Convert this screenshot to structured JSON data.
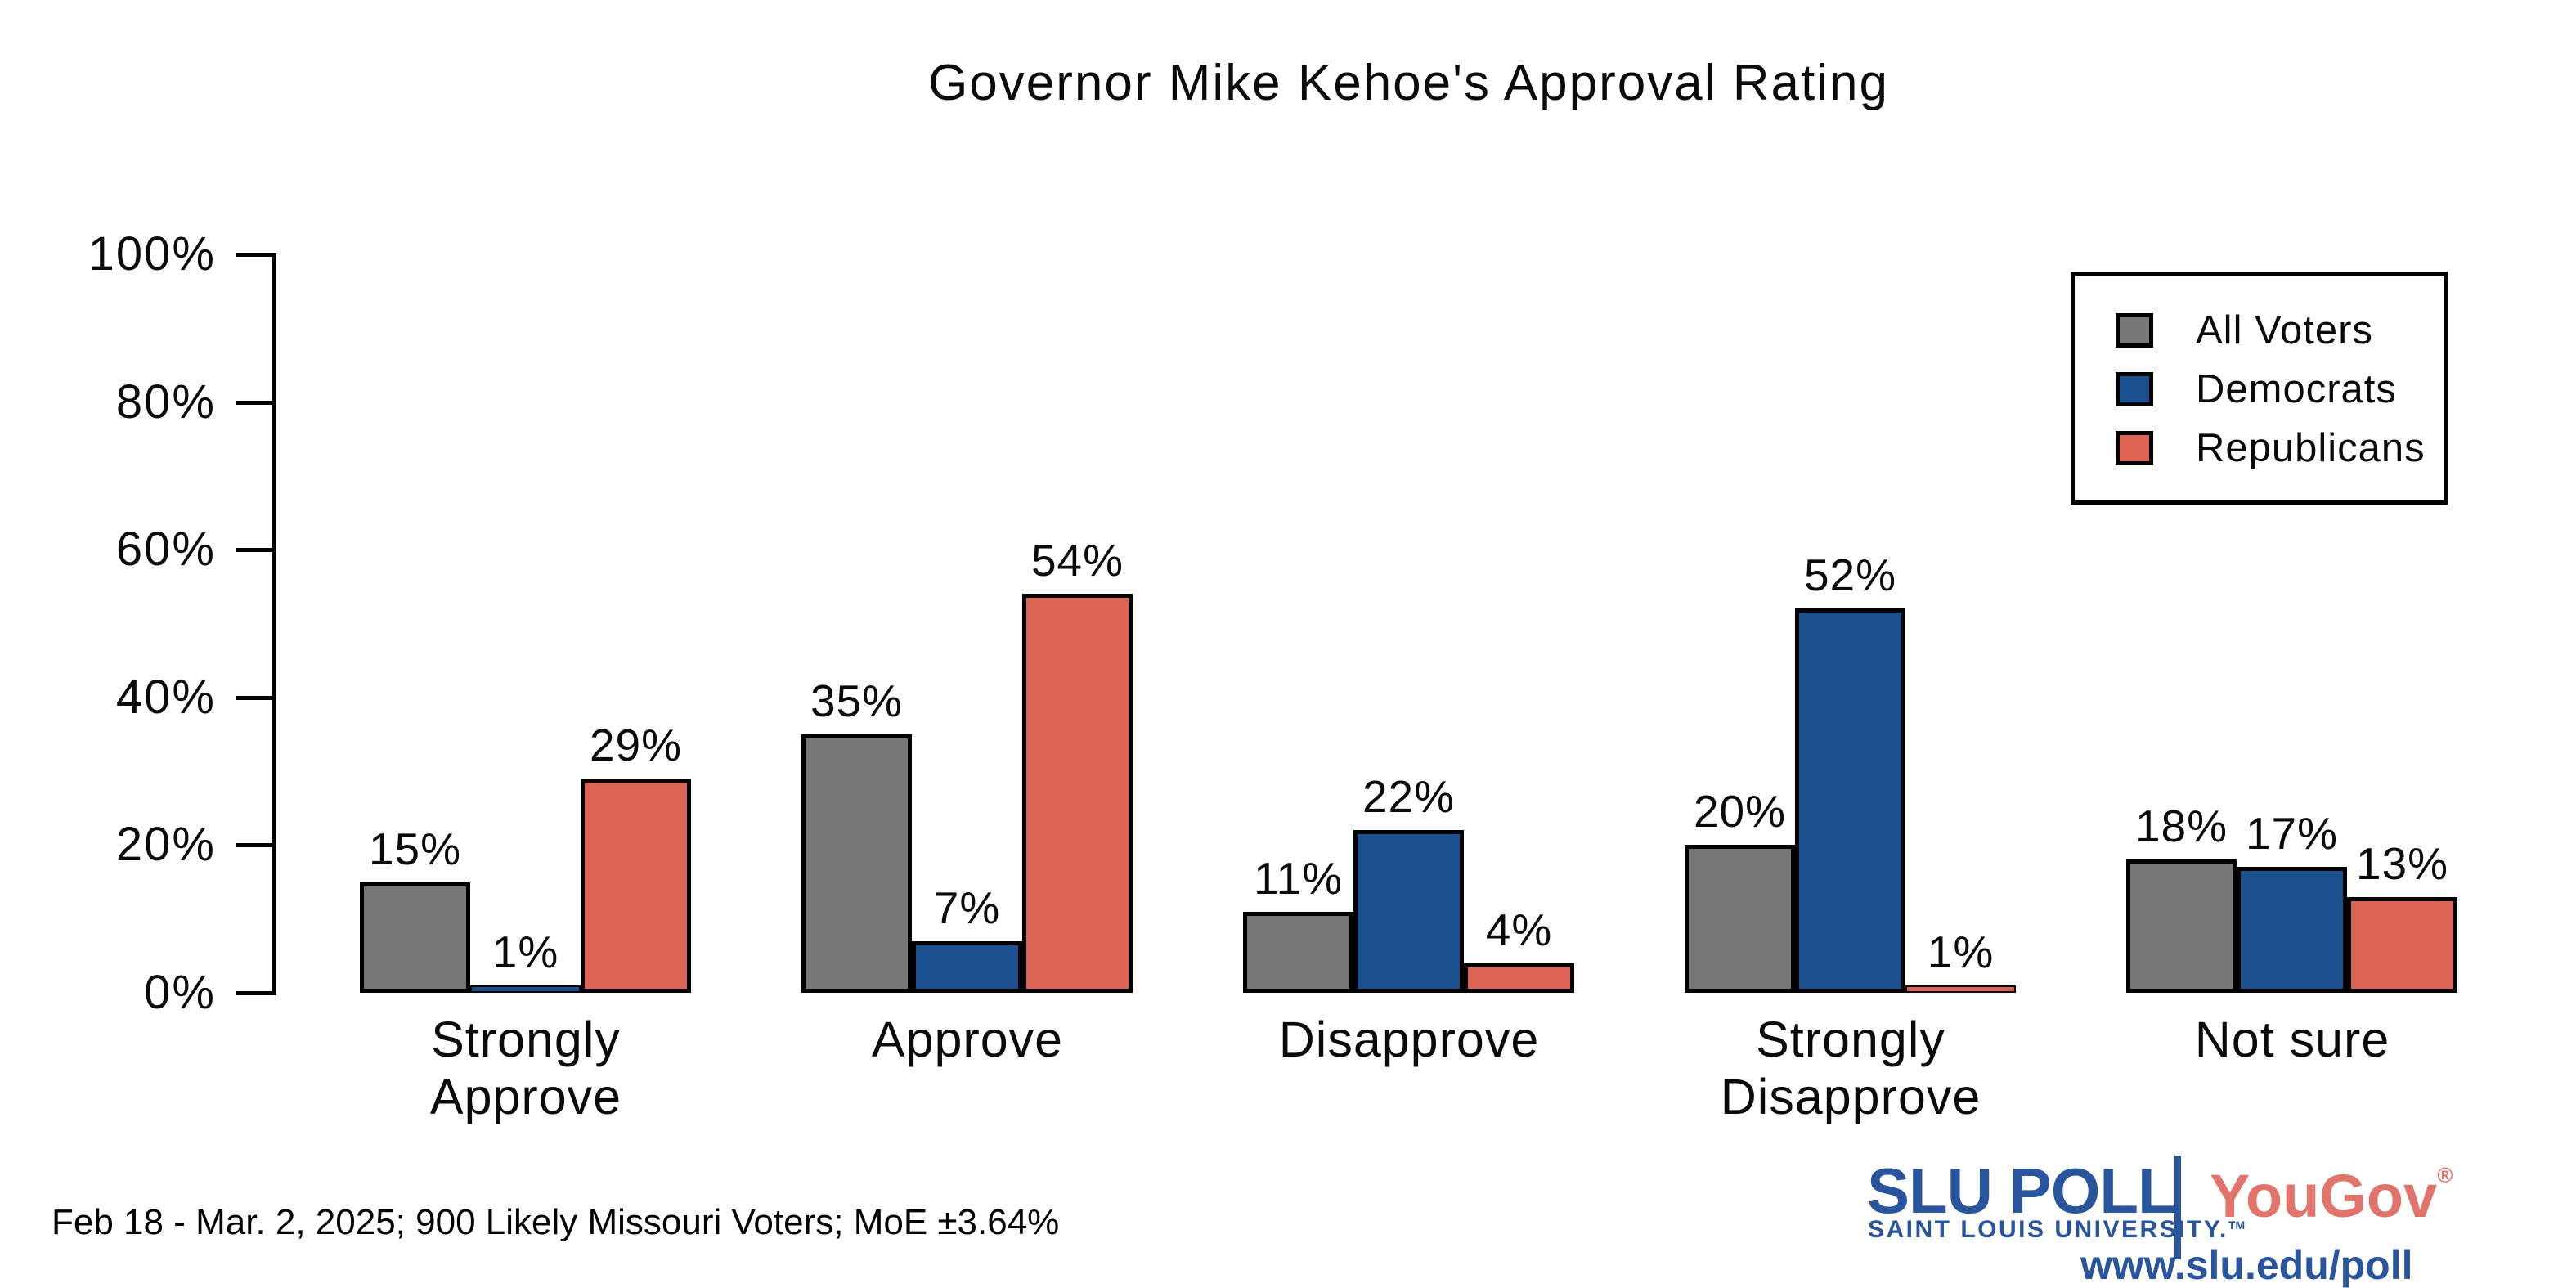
{
  "title": "Governor Mike Kehoe's Approval Rating",
  "chart_data": {
    "type": "bar",
    "title": "Governor Mike Kehoe's Approval Rating",
    "categories": [
      "Strongly Approve",
      "Approve",
      "Disapprove",
      "Strongly Disapprove",
      "Not sure"
    ],
    "category_lines": [
      [
        "Strongly",
        "Approve"
      ],
      [
        "Approve"
      ],
      [
        "Disapprove"
      ],
      [
        "Strongly",
        "Disapprove"
      ],
      [
        "Not sure"
      ]
    ],
    "series": [
      {
        "name": "All Voters",
        "color": "#787878",
        "values": [
          15,
          35,
          11,
          20,
          18
        ]
      },
      {
        "name": "Democrats",
        "color": "#1A508E",
        "values": [
          1,
          7,
          22,
          52,
          17
        ]
      },
      {
        "name": "Republicans",
        "color": "#DB6455",
        "values": [
          29,
          54,
          4,
          1,
          13
        ]
      }
    ],
    "xlabel": "",
    "ylabel": "",
    "ylim": [
      0,
      100
    ],
    "yticks": [
      "0%",
      "20%",
      "40%",
      "60%",
      "80%",
      "100%"
    ],
    "value_label_suffix": "%",
    "grid": false,
    "legend_position": "upper right",
    "bar_outline_color": "#000000",
    "axis_color": "#000000"
  },
  "footer": {
    "source_note": "Feb 18 - Mar. 2, 2025; 900 Likely Missouri Voters; MoE ±3.64%"
  },
  "branding": {
    "slu_wordmark": "SLU POLL",
    "slu_subtitle": "SAINT LOUIS UNIVERSITY.",
    "slu_trademark": "TM",
    "yougov_wordmark": "YouGov",
    "yougov_registered": "®",
    "url": "www.slu.edu/poll",
    "slu_blue": "#29549E",
    "yougov_red": "#E2746C"
  }
}
